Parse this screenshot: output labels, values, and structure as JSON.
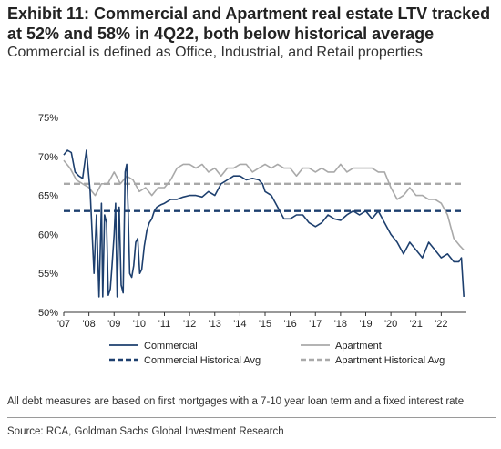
{
  "title": "Exhibit 11: Commercial and Apartment real estate LTV tracked at 52% and 58% in 4Q22, both below historical average",
  "subtitle": "Commercial is defined as Office, Industrial, and Retail properties",
  "note": "All debt measures are based on first mortgages with a 7-10 year loan term and a fixed interest rate",
  "source": "Source: RCA, Goldman Sachs Global Investment Research",
  "colors": {
    "commercial": "#1d3f6e",
    "apartment": "#a9a9a9"
  },
  "chart_data": {
    "type": "line",
    "title": "",
    "xlabel": "",
    "ylabel": "",
    "x_ticks": [
      "'07",
      "'08",
      "'09",
      "'10",
      "'11",
      "'12",
      "'13",
      "'14",
      "'15",
      "'16",
      "'17",
      "'18",
      "'19",
      "'20",
      "'21",
      "'22"
    ],
    "y_ticks": [
      "75%",
      "70%",
      "65%",
      "60%",
      "55%",
      "50%"
    ],
    "xlim": [
      2007.0,
      2023.0
    ],
    "ylim": [
      50,
      75
    ],
    "grid": false,
    "legend_position": "bottom",
    "legend": [
      "Commercial",
      "Apartment",
      "Commercial Historical Avg",
      "Apartment Historical Avg"
    ],
    "series": [
      {
        "name": "Commercial",
        "style": "solid",
        "color": "#1d3f6e",
        "x": [
          2007.0,
          2007.15,
          2007.3,
          2007.45,
          2007.6,
          2007.75,
          2007.9,
          2008.05,
          2008.2,
          2008.3,
          2008.4,
          2008.5,
          2008.55,
          2008.62,
          2008.7,
          2008.77,
          2008.85,
          2008.92,
          2009.0,
          2009.06,
          2009.12,
          2009.2,
          2009.28,
          2009.36,
          2009.44,
          2009.5,
          2009.56,
          2009.62,
          2009.7,
          2009.78,
          2009.86,
          2009.94,
          2010.02,
          2010.1,
          2010.2,
          2010.3,
          2010.4,
          2010.5,
          2010.6,
          2010.7,
          2010.85,
          2011.0,
          2011.25,
          2011.5,
          2011.75,
          2012.0,
          2012.25,
          2012.5,
          2012.75,
          2013.0,
          2013.25,
          2013.5,
          2013.75,
          2014.0,
          2014.25,
          2014.5,
          2014.75,
          2014.9,
          2015.0,
          2015.25,
          2015.5,
          2015.75,
          2016.0,
          2016.25,
          2016.5,
          2016.75,
          2017.0,
          2017.25,
          2017.5,
          2017.75,
          2018.0,
          2018.25,
          2018.5,
          2018.75,
          2019.0,
          2019.25,
          2019.5,
          2019.75,
          2020.0,
          2020.25,
          2020.5,
          2020.75,
          2021.0,
          2021.25,
          2021.5,
          2021.75,
          2022.0,
          2022.25,
          2022.5,
          2022.7,
          2022.8,
          2022.9
        ],
        "values": [
          70.2,
          70.8,
          70.5,
          68.0,
          67.5,
          67.2,
          70.8,
          65.5,
          55.0,
          62.5,
          52.0,
          64.0,
          52.0,
          62.5,
          61.5,
          52.2,
          53.0,
          56.0,
          60.0,
          64.0,
          52.0,
          63.5,
          53.5,
          52.5,
          68.0,
          69.0,
          63.0,
          55.0,
          54.5,
          56.0,
          59.0,
          59.5,
          55.0,
          55.5,
          58.5,
          60.5,
          61.5,
          62.0,
          63.0,
          63.5,
          63.8,
          64.0,
          64.5,
          64.5,
          64.8,
          65.0,
          65.0,
          64.8,
          65.5,
          65.0,
          66.5,
          67.0,
          67.5,
          67.5,
          67.0,
          67.2,
          67.0,
          66.5,
          65.5,
          65.0,
          63.5,
          62.0,
          62.0,
          62.5,
          62.5,
          61.5,
          61.0,
          61.5,
          62.5,
          62.0,
          61.8,
          62.5,
          63.0,
          62.5,
          63.0,
          62.0,
          63.0,
          61.5,
          60.0,
          59.0,
          57.5,
          59.0,
          58.0,
          57.0,
          59.0,
          58.0,
          57.0,
          57.5,
          56.5,
          56.5,
          57.0,
          52.0
        ]
      },
      {
        "name": "Apartment",
        "style": "solid",
        "color": "#a9a9a9",
        "x": [
          2007.0,
          2007.25,
          2007.5,
          2007.75,
          2008.0,
          2008.25,
          2008.5,
          2008.75,
          2009.0,
          2009.25,
          2009.5,
          2009.75,
          2010.0,
          2010.25,
          2010.5,
          2010.75,
          2011.0,
          2011.25,
          2011.5,
          2011.75,
          2012.0,
          2012.25,
          2012.5,
          2012.75,
          2013.0,
          2013.25,
          2013.5,
          2013.75,
          2014.0,
          2014.25,
          2014.5,
          2014.75,
          2015.0,
          2015.25,
          2015.5,
          2015.75,
          2016.0,
          2016.25,
          2016.5,
          2016.75,
          2017.0,
          2017.25,
          2017.5,
          2017.75,
          2018.0,
          2018.25,
          2018.5,
          2018.75,
          2019.0,
          2019.25,
          2019.5,
          2019.75,
          2020.0,
          2020.25,
          2020.5,
          2020.75,
          2021.0,
          2021.25,
          2021.5,
          2021.75,
          2022.0,
          2022.25,
          2022.5,
          2022.75,
          2022.9
        ],
        "values": [
          69.5,
          68.5,
          67.0,
          66.5,
          66.0,
          65.0,
          66.5,
          66.5,
          68.0,
          66.5,
          67.5,
          67.0,
          65.5,
          66.0,
          65.0,
          66.0,
          66.0,
          67.0,
          68.5,
          69.0,
          69.0,
          68.5,
          69.0,
          68.0,
          68.5,
          67.5,
          68.5,
          68.5,
          69.0,
          69.0,
          68.0,
          68.5,
          69.0,
          68.5,
          69.0,
          68.5,
          68.5,
          67.5,
          68.5,
          68.5,
          68.0,
          68.5,
          68.0,
          68.0,
          69.0,
          68.0,
          68.5,
          68.5,
          68.5,
          68.5,
          68.0,
          68.0,
          66.0,
          64.5,
          65.0,
          66.0,
          65.0,
          65.0,
          64.5,
          64.5,
          64.0,
          62.5,
          59.5,
          58.5,
          58.0
        ]
      },
      {
        "name": "Commercial Historical Avg",
        "style": "dashed",
        "color": "#1d3f6e",
        "x": [
          2007.0,
          2022.9
        ],
        "values": [
          63.0,
          63.0
        ]
      },
      {
        "name": "Apartment Historical Avg",
        "style": "dashed",
        "color": "#a9a9a9",
        "x": [
          2007.0,
          2022.9
        ],
        "values": [
          66.5,
          66.5
        ]
      }
    ]
  }
}
